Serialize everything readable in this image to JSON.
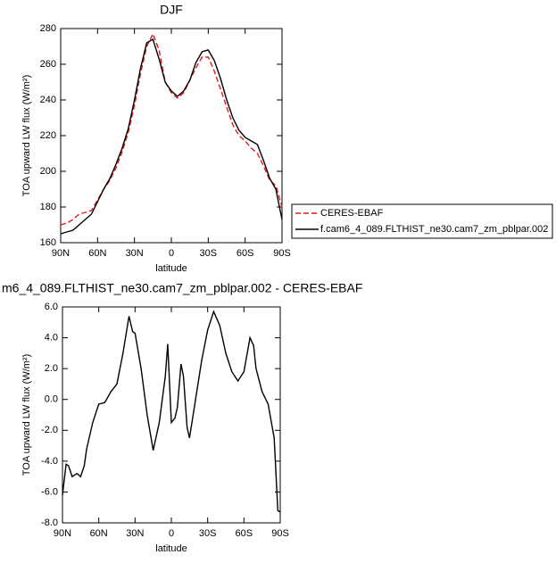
{
  "chart_data": [
    {
      "type": "line",
      "title": "DJF",
      "xlabel": "latitude",
      "ylabel": "TOA upward LW flux (W/m²)",
      "x": [
        90,
        85,
        80,
        75,
        70,
        65,
        60,
        55,
        50,
        45,
        40,
        35,
        30,
        25,
        20,
        15,
        10,
        5,
        0,
        -5,
        -10,
        -15,
        -20,
        -25,
        -30,
        -35,
        -40,
        -45,
        -50,
        -55,
        -60,
        -65,
        -70,
        -75,
        -80,
        -85,
        -90
      ],
      "series": [
        {
          "name": "CERES-EBAF",
          "color": "#e41a1c",
          "dash": true,
          "values": [
            170,
            171,
            173,
            176,
            177,
            178,
            184,
            190,
            195,
            202,
            211,
            222,
            237,
            255,
            270,
            277,
            268,
            250,
            244,
            241,
            244,
            251,
            258,
            264,
            264,
            256,
            246,
            236,
            226,
            220,
            217,
            213,
            210,
            203,
            195,
            192,
            180
          ]
        },
        {
          "name": "f.cam6_4_089.FLTHIST_ne30.cam7_zm_pblpar.002",
          "color": "#000000",
          "dash": false,
          "values": [
            165,
            166,
            167,
            170,
            173,
            176,
            183,
            190,
            196,
            204,
            213,
            224,
            240,
            258,
            272,
            274,
            263,
            250,
            245,
            242,
            245,
            251,
            261,
            267,
            268,
            262,
            252,
            240,
            230,
            223,
            219,
            217,
            215,
            206,
            196,
            190,
            173
          ]
        }
      ],
      "xlim": [
        90,
        -90
      ],
      "xticks": [
        {
          "value": 90,
          "label": "90N"
        },
        {
          "value": 60,
          "label": "60N"
        },
        {
          "value": 30,
          "label": "30N"
        },
        0,
        {
          "value": -30,
          "label": "30S"
        },
        {
          "value": -60,
          "label": "60S"
        },
        {
          "value": -90,
          "label": "90S"
        }
      ],
      "ylim": [
        160,
        280
      ],
      "yticks": [
        160,
        180,
        200,
        220,
        240,
        260,
        280
      ],
      "legend": "right"
    },
    {
      "type": "line",
      "title": "m6_4_089.FLTHIST_ne30.cam7_zm_pblpar.002 - CERES-EBAF",
      "xlabel": "latitude",
      "ylabel": "TOA upward LW flux (W/m²)",
      "x": [
        90,
        87,
        85,
        82,
        78,
        75,
        72,
        70,
        65,
        60,
        55,
        50,
        45,
        40,
        35,
        32,
        30,
        25,
        20,
        15,
        10,
        5,
        3,
        0,
        -3,
        -5,
        -8,
        -10,
        -13,
        -15,
        -20,
        -25,
        -30,
        -35,
        -40,
        -45,
        -50,
        -55,
        -60,
        -65,
        -68,
        -70,
        -75,
        -80,
        -85,
        -88,
        -90
      ],
      "series": [
        {
          "color": "#000000",
          "dash": false,
          "values": [
            -6.2,
            -4.2,
            -4.3,
            -5.0,
            -4.8,
            -5.0,
            -4.3,
            -3.2,
            -1.5,
            -0.3,
            -0.2,
            0.5,
            1.0,
            3.0,
            5.4,
            4.4,
            4.3,
            2.0,
            -1.0,
            -3.3,
            -1.5,
            1.5,
            3.6,
            -1.5,
            -1.2,
            -0.5,
            2.3,
            1.5,
            -1.8,
            -2.5,
            0,
            2.5,
            4.5,
            5.7,
            4.8,
            3.0,
            1.8,
            1.2,
            1.8,
            4.0,
            3.5,
            2.0,
            0.5,
            -0.3,
            -2.5,
            -7.2,
            -7.3
          ]
        }
      ],
      "xlim": [
        90,
        -90
      ],
      "xticks": [
        {
          "value": 90,
          "label": "90N"
        },
        {
          "value": 60,
          "label": "60N"
        },
        {
          "value": 30,
          "label": "30N"
        },
        0,
        {
          "value": -30,
          "label": "30S"
        },
        {
          "value": -60,
          "label": "60S"
        },
        {
          "value": -90,
          "label": "90S"
        }
      ],
      "ylim": [
        -8,
        6
      ],
      "yticks": [
        {
          "value": -8,
          "label": "-8.0"
        },
        {
          "value": -6,
          "label": "-6.0"
        },
        {
          "value": -4,
          "label": "-4.0"
        },
        {
          "value": -2,
          "label": "-2.0"
        },
        {
          "value": 0,
          "label": "0.0"
        },
        {
          "value": 2,
          "label": "2.0"
        },
        {
          "value": 4,
          "label": "4.0"
        },
        {
          "value": 6,
          "label": "6.0"
        }
      ]
    }
  ]
}
